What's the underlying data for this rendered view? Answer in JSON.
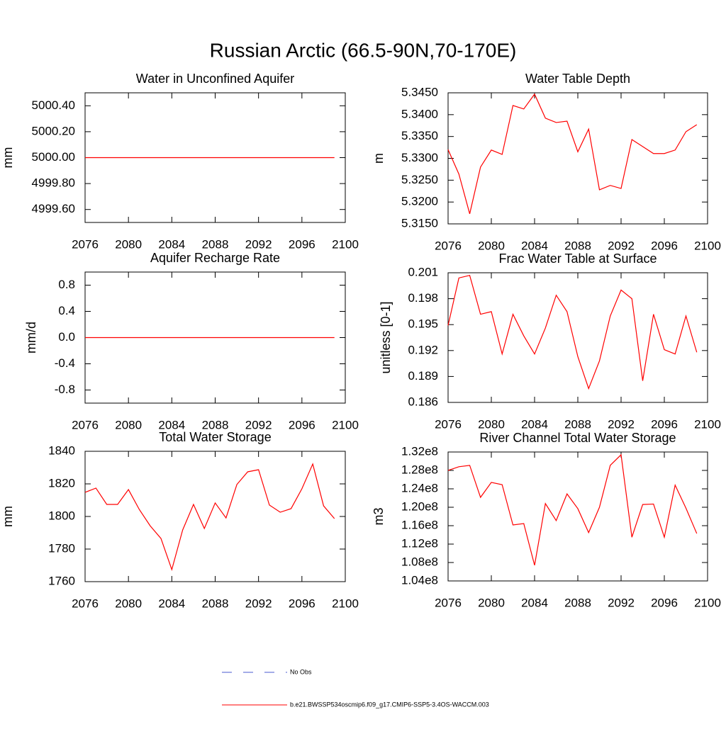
{
  "title": "Russian Arctic (66.5-90N,70-170E)",
  "legend": [
    {
      "name": "No Obs",
      "color": "#4a5ad0",
      "dash": true
    },
    {
      "name": "b.e21.BWSSP534oscmip6.f09_g17.CMIP6-SSP5-3.4OS-WACCM.003",
      "color": "#ff0000",
      "dash": false
    }
  ],
  "chart_data": [
    {
      "type": "line",
      "title": "Water in Unconfined Aquifer",
      "y_label": "mm",
      "color": "#ff0000",
      "x": [
        2076,
        2077,
        2078,
        2079,
        2080,
        2081,
        2082,
        2083,
        2084,
        2085,
        2086,
        2087,
        2088,
        2089,
        2090,
        2091,
        2092,
        2093,
        2094,
        2095,
        2096,
        2097,
        2098,
        2099
      ],
      "values": [
        5000,
        5000,
        5000,
        5000,
        5000,
        5000,
        5000,
        5000,
        5000,
        5000,
        5000,
        5000,
        5000,
        5000,
        5000,
        5000,
        5000,
        5000,
        5000,
        5000,
        5000,
        5000,
        5000,
        5000
      ],
      "xlim": [
        2076,
        2100
      ],
      "xticks": [
        2076,
        2080,
        2084,
        2088,
        2092,
        2096,
        2100
      ],
      "ylim": [
        4999.5,
        5000.5
      ],
      "yticks": [
        {
          "value": 4999.6,
          "label": "4999.60"
        },
        {
          "value": 4999.8,
          "label": "4999.80"
        },
        {
          "value": 5000,
          "label": "5000.00"
        },
        {
          "value": 5000.2,
          "label": "5000.20"
        },
        {
          "value": 5000.4,
          "label": "5000.40"
        }
      ]
    },
    {
      "type": "line",
      "title": "Water Table Depth",
      "y_label": "m",
      "color": "#ff0000",
      "x": [
        2076,
        2077,
        2078,
        2079,
        2080,
        2081,
        2082,
        2083,
        2084,
        2085,
        2086,
        2087,
        2088,
        2089,
        2090,
        2091,
        2092,
        2093,
        2094,
        2095,
        2096,
        2097,
        2098,
        2099
      ],
      "values": [
        5.332,
        5.3264,
        5.3173,
        5.328,
        5.3319,
        5.3309,
        5.3421,
        5.3413,
        5.3447,
        5.3392,
        5.3382,
        5.3385,
        5.3315,
        5.3367,
        5.3228,
        5.3238,
        5.3231,
        5.3343,
        5.3327,
        5.3311,
        5.3311,
        5.3319,
        5.3361,
        5.3377
      ],
      "xlim": [
        2076,
        2100
      ],
      "xticks": [
        2076,
        2080,
        2084,
        2088,
        2092,
        2096,
        2100
      ],
      "ylim": [
        5.315,
        5.345
      ],
      "yticks": [
        {
          "value": 5.315,
          "label": "5.3150"
        },
        {
          "value": 5.32,
          "label": "5.3200"
        },
        {
          "value": 5.325,
          "label": "5.3250"
        },
        {
          "value": 5.33,
          "label": "5.3300"
        },
        {
          "value": 5.335,
          "label": "5.3350"
        },
        {
          "value": 5.34,
          "label": "5.3400"
        },
        {
          "value": 5.345,
          "label": "5.3450"
        }
      ]
    },
    {
      "type": "line",
      "title": "Aquifer Recharge Rate",
      "y_label": "mm/d",
      "color": "#ff0000",
      "x": [
        2076,
        2077,
        2078,
        2079,
        2080,
        2081,
        2082,
        2083,
        2084,
        2085,
        2086,
        2087,
        2088,
        2089,
        2090,
        2091,
        2092,
        2093,
        2094,
        2095,
        2096,
        2097,
        2098,
        2099
      ],
      "values": [
        0,
        0,
        0,
        0,
        0,
        0,
        0,
        0,
        0,
        0,
        0,
        0,
        0,
        0,
        0,
        0,
        0,
        0,
        0,
        0,
        0,
        0,
        0,
        0
      ],
      "xlim": [
        2076,
        2100
      ],
      "xticks": [
        2076,
        2080,
        2084,
        2088,
        2092,
        2096,
        2100
      ],
      "ylim": [
        -1,
        1
      ],
      "yticks": [
        -0.8,
        -0.4,
        {
          "value": 0,
          "label": "0.0"
        },
        0.4,
        0.8
      ]
    },
    {
      "type": "line",
      "title": "Frac Water Table at Surface",
      "y_label": "unitless [0-1]",
      "color": "#ff0000",
      "x": [
        2076,
        2077,
        2078,
        2079,
        2080,
        2081,
        2082,
        2083,
        2084,
        2085,
        2086,
        2087,
        2088,
        2089,
        2090,
        2091,
        2092,
        2093,
        2094,
        2095,
        2096,
        2097,
        2098,
        2099
      ],
      "values": [
        0.1949,
        0.2004,
        0.2007,
        0.1962,
        0.1965,
        0.1916,
        0.1962,
        0.1937,
        0.1916,
        0.1946,
        0.1984,
        0.1965,
        0.1913,
        0.1876,
        0.1908,
        0.196,
        0.199,
        0.198,
        0.1885,
        0.1962,
        0.1921,
        0.1916,
        0.196,
        0.1918
      ],
      "xlim": [
        2076,
        2100
      ],
      "xticks": [
        2076,
        2080,
        2084,
        2088,
        2092,
        2096,
        2100
      ],
      "ylim": [
        0.186,
        0.201
      ],
      "yticks": [
        0.186,
        0.189,
        0.192,
        0.195,
        0.198,
        0.201
      ]
    },
    {
      "type": "line",
      "title": "Total Water Storage",
      "y_label": "mm",
      "color": "#ff0000",
      "x": [
        2076,
        2077,
        2078,
        2079,
        2080,
        2081,
        2082,
        2083,
        2084,
        2085,
        2086,
        2087,
        2088,
        2089,
        2090,
        2091,
        2092,
        2093,
        2094,
        2095,
        2096,
        2097,
        2098,
        2099
      ],
      "values": [
        1814.8,
        1817.4,
        1807.4,
        1807.4,
        1816.5,
        1804.3,
        1794.3,
        1786.5,
        1767.4,
        1791.7,
        1807.4,
        1792.6,
        1808.3,
        1799.1,
        1819.6,
        1827.4,
        1828.7,
        1807,
        1802.6,
        1804.8,
        1817,
        1832.2,
        1806.5,
        1798.7
      ],
      "xlim": [
        2076,
        2100
      ],
      "xticks": [
        2076,
        2080,
        2084,
        2088,
        2092,
        2096,
        2100
      ],
      "ylim": [
        1760,
        1840
      ],
      "yticks": [
        1760,
        1780,
        1800,
        1820,
        1840
      ]
    },
    {
      "type": "line",
      "title": "River Channel Total Water Storage",
      "y_label": "m3",
      "color": "#ff0000",
      "x": [
        2076,
        2077,
        2078,
        2079,
        2080,
        2081,
        2082,
        2083,
        2084,
        2085,
        2086,
        2087,
        2088,
        2089,
        2090,
        2091,
        2092,
        2093,
        2094,
        2095,
        2096,
        2097,
        2098,
        2099
      ],
      "values": [
        128000000,
        128800000,
        129100000,
        122150000,
        125400000,
        124900000,
        116150000,
        116460000,
        107400000,
        120800000,
        117100000,
        122900000,
        119700000,
        114500000,
        120000000,
        129100000,
        131400000,
        113500000,
        120600000,
        120700000,
        113500000,
        124800000,
        119800000,
        114300000
      ],
      "xlim": [
        2076,
        2100
      ],
      "xticks": [
        2076,
        2080,
        2084,
        2088,
        2092,
        2096,
        2100
      ],
      "ylim": [
        104000000,
        132000000
      ],
      "yticks": [
        {
          "value": 104000000,
          "label": "1.04e8"
        },
        {
          "value": 108000000,
          "label": "1.08e8"
        },
        {
          "value": 112000000,
          "label": "1.12e8"
        },
        {
          "value": 116000000,
          "label": "1.16e8"
        },
        {
          "value": 120000000,
          "label": "1.20e8"
        },
        {
          "value": 124000000,
          "label": "1.24e8"
        },
        {
          "value": 128000000,
          "label": "1.28e8"
        },
        {
          "value": 132000000,
          "label": "1.32e8"
        }
      ]
    }
  ]
}
